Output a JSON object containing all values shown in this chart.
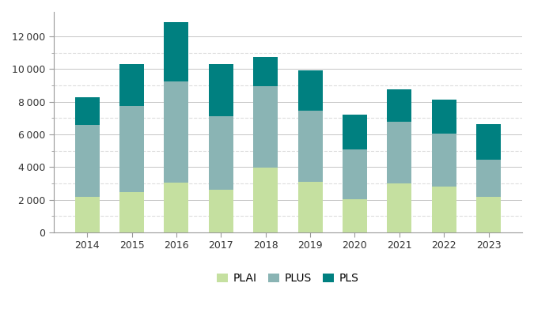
{
  "years": [
    2014,
    2015,
    2016,
    2017,
    2018,
    2019,
    2020,
    2021,
    2022,
    2023
  ],
  "PLAI": [
    2150,
    2450,
    3050,
    2600,
    3950,
    3100,
    2050,
    3000,
    2800,
    2150
  ],
  "PLUS": [
    4450,
    5300,
    6200,
    4500,
    5000,
    4350,
    3050,
    3750,
    3250,
    2300
  ],
  "PLS": [
    1650,
    2550,
    3600,
    3200,
    1800,
    2450,
    2100,
    2000,
    2100,
    2200
  ],
  "color_PLAI": "#c5e0a0",
  "color_PLUS": "#8ab4b4",
  "color_PLS": "#008080",
  "bar_width": 0.55,
  "ylim": [
    0,
    13500
  ],
  "yticks": [
    0,
    2000,
    4000,
    6000,
    8000,
    10000,
    12000
  ],
  "minor_yticks": [
    1000,
    3000,
    5000,
    7000,
    9000,
    11000
  ],
  "grid_color": "#bbbbbb",
  "minor_grid_color": "#dddddd",
  "background_color": "#ffffff",
  "legend_labels": [
    "PLAI",
    "PLUS",
    "PLS"
  ],
  "spine_color": "#999999",
  "tick_label_fontsize": 9,
  "tick_label_color": "#333333",
  "legend_fontsize": 10
}
